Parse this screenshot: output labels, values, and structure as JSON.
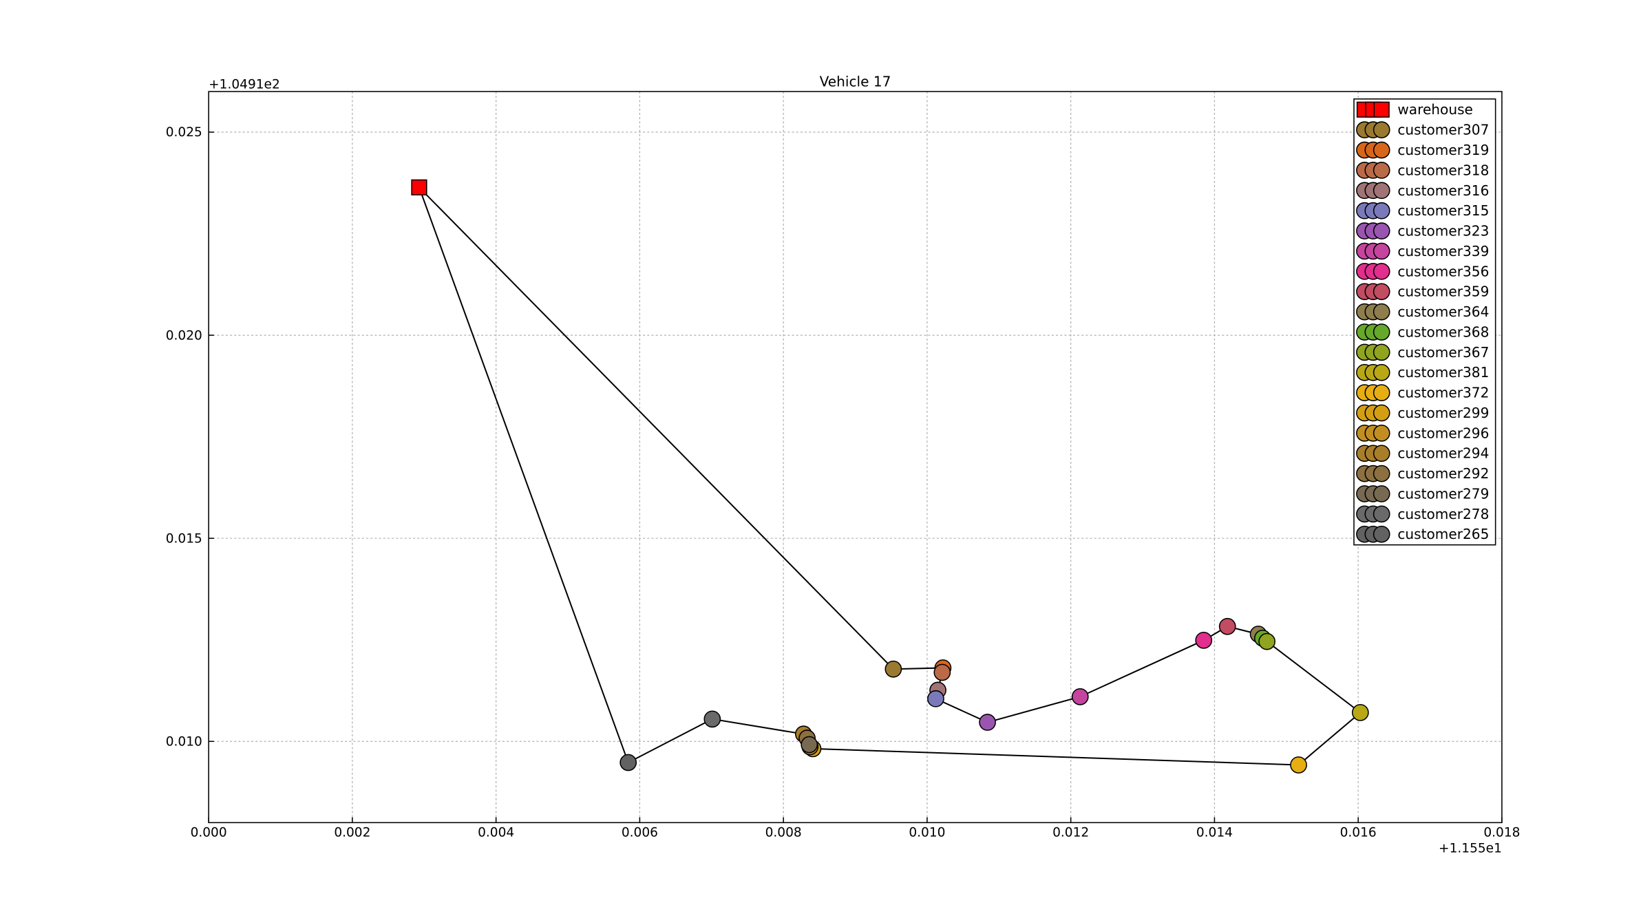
{
  "chart_data": {
    "type": "scatter",
    "title": "Vehicle 17",
    "x_offset_label": "+1.155e1",
    "y_offset_label": "+1.0491e2",
    "xlim": [
      0,
      0.018
    ],
    "ylim": [
      0.008,
      0.026
    ],
    "xticks": [
      {
        "value": 0,
        "label": "0.000"
      },
      {
        "value": 0.002,
        "label": "0.002"
      },
      {
        "value": 0.004,
        "label": "0.004"
      },
      {
        "value": 0.006,
        "label": "0.006"
      },
      {
        "value": 0.008,
        "label": "0.008"
      },
      {
        "value": 0.01,
        "label": "0.010"
      },
      {
        "value": 0.012,
        "label": "0.012"
      },
      {
        "value": 0.014,
        "label": "0.014"
      },
      {
        "value": 0.016,
        "label": "0.016"
      },
      {
        "value": 0.018,
        "label": "0.018"
      }
    ],
    "yticks": [
      {
        "value": 0.01,
        "label": "0.010"
      },
      {
        "value": 0.015,
        "label": "0.015"
      },
      {
        "value": 0.02,
        "label": "0.020"
      },
      {
        "value": 0.025,
        "label": "0.025"
      }
    ],
    "grid": true,
    "legend": "upper right",
    "route": {
      "color": "#000000",
      "x": [
        0.00293,
        0.00584,
        0.00701,
        0.00828,
        0.00833,
        0.00836,
        0.00837,
        0.00841,
        0.01517,
        0.01603,
        0.01473,
        0.01467,
        0.01461,
        0.01418,
        0.01385,
        0.01213,
        0.01084,
        0.01012,
        0.01015,
        0.01021,
        0.01022,
        0.00953,
        0.00293
      ],
      "y": [
        0.02364,
        0.00948,
        0.01055,
        0.01018,
        0.01008,
        0.00992,
        0.00987,
        0.00982,
        0.00942,
        0.01071,
        0.01246,
        0.01254,
        0.01264,
        0.01283,
        0.01249,
        0.0111,
        0.01047,
        0.01105,
        0.01126,
        0.0117,
        0.01181,
        0.01178,
        0.02364
      ]
    },
    "series": [
      {
        "name": "warehouse",
        "color": "#ff0000",
        "marker": "square",
        "x": [
          0.00293
        ],
        "y": [
          0.02364
        ]
      },
      {
        "name": "customer307",
        "color": "#9a7a30",
        "marker": "circle",
        "x": [
          0.00953
        ],
        "y": [
          0.01178
        ]
      },
      {
        "name": "customer319",
        "color": "#d8661a",
        "marker": "circle",
        "x": [
          0.01022
        ],
        "y": [
          0.01181
        ]
      },
      {
        "name": "customer318",
        "color": "#bb6a48",
        "marker": "circle",
        "x": [
          0.01021
        ],
        "y": [
          0.0117
        ]
      },
      {
        "name": "customer316",
        "color": "#a07476",
        "marker": "circle",
        "x": [
          0.01015
        ],
        "y": [
          0.01126
        ]
      },
      {
        "name": "customer315",
        "color": "#7a7abb",
        "marker": "circle",
        "x": [
          0.01012
        ],
        "y": [
          0.01105
        ]
      },
      {
        "name": "customer323",
        "color": "#9a55b0",
        "marker": "circle",
        "x": [
          0.01084
        ],
        "y": [
          0.01047
        ]
      },
      {
        "name": "customer339",
        "color": "#c4449e",
        "marker": "circle",
        "x": [
          0.01213
        ],
        "y": [
          0.0111
        ]
      },
      {
        "name": "customer356",
        "color": "#e22e8c",
        "marker": "circle",
        "x": [
          0.01385
        ],
        "y": [
          0.01249
        ]
      },
      {
        "name": "customer359",
        "color": "#c24c62",
        "marker": "circle",
        "x": [
          0.01418
        ],
        "y": [
          0.01283
        ]
      },
      {
        "name": "customer364",
        "color": "#8e7e4e",
        "marker": "circle",
        "x": [
          0.01461
        ],
        "y": [
          0.01264
        ]
      },
      {
        "name": "customer368",
        "color": "#66a82a",
        "marker": "circle",
        "x": [
          0.01467
        ],
        "y": [
          0.01254
        ]
      },
      {
        "name": "customer367",
        "color": "#90a420",
        "marker": "circle",
        "x": [
          0.01473
        ],
        "y": [
          0.01246
        ]
      },
      {
        "name": "customer381",
        "color": "#b8a816",
        "marker": "circle",
        "x": [
          0.01603
        ],
        "y": [
          0.01071
        ]
      },
      {
        "name": "customer372",
        "color": "#e6ae12",
        "marker": "circle",
        "x": [
          0.01517
        ],
        "y": [
          0.00942
        ]
      },
      {
        "name": "customer299",
        "color": "#d49e14",
        "marker": "circle",
        "x": [
          0.00841
        ],
        "y": [
          0.00982
        ]
      },
      {
        "name": "customer296",
        "color": "#c28e22",
        "marker": "circle",
        "x": [
          0.00837
        ],
        "y": [
          0.00987
        ]
      },
      {
        "name": "customer294",
        "color": "#a87e2a",
        "marker": "circle",
        "x": [
          0.00828
        ],
        "y": [
          0.01018
        ]
      },
      {
        "name": "customer292",
        "color": "#8c7040",
        "marker": "circle",
        "x": [
          0.00833
        ],
        "y": [
          0.01008
        ]
      },
      {
        "name": "customer279",
        "color": "#786a52",
        "marker": "circle",
        "x": [
          0.00836
        ],
        "y": [
          0.00992
        ]
      },
      {
        "name": "customer278",
        "color": "#6a6a6a",
        "marker": "circle",
        "x": [
          0.00701
        ],
        "y": [
          0.01055
        ]
      },
      {
        "name": "customer265",
        "color": "#626262",
        "marker": "circle",
        "x": [
          0.00584
        ],
        "y": [
          0.00948
        ]
      }
    ]
  }
}
